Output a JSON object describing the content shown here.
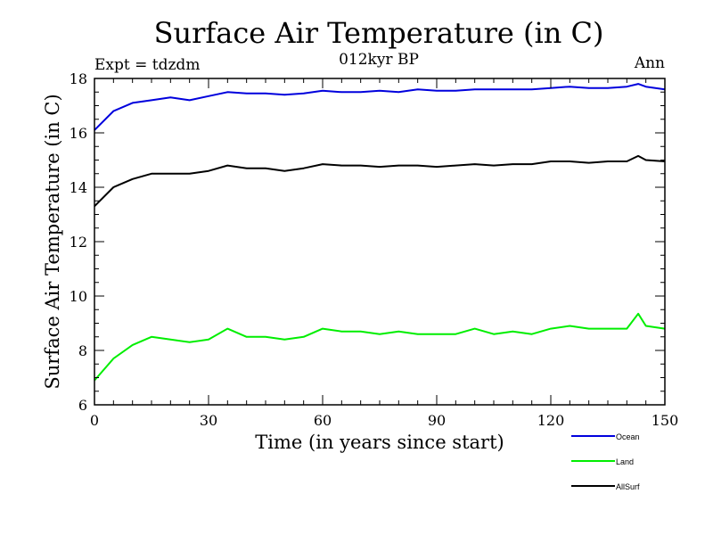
{
  "chart_data": {
    "type": "line",
    "title": "Surface Air Temperature (in C)",
    "subtitle": "012kyr BP",
    "experiment_label": "Expt = tdzdm",
    "period_label": "Ann",
    "xlabel": "Time (in years since start)",
    "ylabel": "Surface Air Temperature (in C)",
    "xlim": [
      0,
      150
    ],
    "ylim": [
      6,
      18
    ],
    "xticks": [
      0,
      30,
      60,
      90,
      120,
      150
    ],
    "yticks": [
      6,
      8,
      10,
      12,
      14,
      16,
      18
    ],
    "grid": false,
    "legend_position": "bottom-right, outside plot",
    "x": [
      0,
      5,
      10,
      15,
      20,
      25,
      30,
      35,
      40,
      45,
      50,
      55,
      60,
      65,
      70,
      75,
      80,
      85,
      90,
      95,
      100,
      105,
      110,
      115,
      120,
      125,
      130,
      135,
      140,
      143,
      145,
      150
    ],
    "series": [
      {
        "name": "Ocean",
        "color": "#0000dd",
        "values": [
          16.1,
          16.8,
          17.1,
          17.2,
          17.3,
          17.2,
          17.35,
          17.5,
          17.45,
          17.45,
          17.4,
          17.45,
          17.55,
          17.5,
          17.5,
          17.55,
          17.5,
          17.6,
          17.55,
          17.55,
          17.6,
          17.6,
          17.6,
          17.6,
          17.65,
          17.7,
          17.65,
          17.65,
          17.7,
          17.8,
          17.7,
          17.6
        ]
      },
      {
        "name": "Land",
        "color": "#00ee00",
        "values": [
          6.9,
          7.7,
          8.2,
          8.5,
          8.4,
          8.3,
          8.4,
          8.8,
          8.5,
          8.5,
          8.4,
          8.5,
          8.8,
          8.7,
          8.7,
          8.6,
          8.7,
          8.6,
          8.6,
          8.6,
          8.8,
          8.6,
          8.7,
          8.6,
          8.8,
          8.9,
          8.8,
          8.8,
          8.8,
          9.35,
          8.9,
          8.8
        ]
      },
      {
        "name": "AllSurf",
        "color": "#000000",
        "values": [
          13.3,
          14.0,
          14.3,
          14.5,
          14.5,
          14.5,
          14.6,
          14.8,
          14.7,
          14.7,
          14.6,
          14.7,
          14.85,
          14.8,
          14.8,
          14.75,
          14.8,
          14.8,
          14.75,
          14.8,
          14.85,
          14.8,
          14.85,
          14.85,
          14.95,
          14.95,
          14.9,
          14.95,
          14.95,
          15.15,
          15.0,
          14.95
        ]
      }
    ]
  }
}
